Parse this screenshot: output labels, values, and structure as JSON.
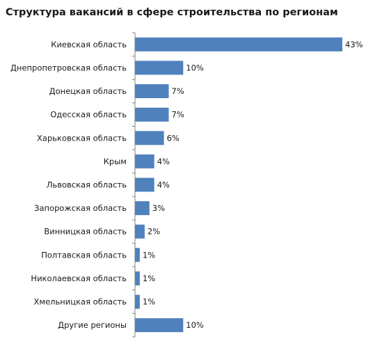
{
  "chart_data": {
    "type": "bar",
    "orientation": "horizontal",
    "title": "Структура вакансий в сфере строительства по регионам",
    "categories": [
      "Киевская область",
      "Днепропетровская область",
      "Донецкая область",
      "Одесская область",
      "Харьковская область",
      "Крым",
      "Львовская область",
      "Запорожская область",
      "Винницкая область",
      "Полтавская область",
      "Николаевская область",
      "Хмельницкая область",
      "Другие регионы"
    ],
    "values": [
      43,
      10,
      7,
      7,
      6,
      4,
      4,
      3,
      2,
      1,
      1,
      1,
      10
    ],
    "value_labels": [
      "43%",
      "10%",
      "7%",
      "7%",
      "6%",
      "4%",
      "4%",
      "3%",
      "2%",
      "1%",
      "1%",
      "1%",
      "10%"
    ],
    "unit": "%",
    "xlim": [
      0,
      43
    ],
    "grid": false,
    "bar_color": "#4f81bd",
    "axis_color": "#808080"
  }
}
